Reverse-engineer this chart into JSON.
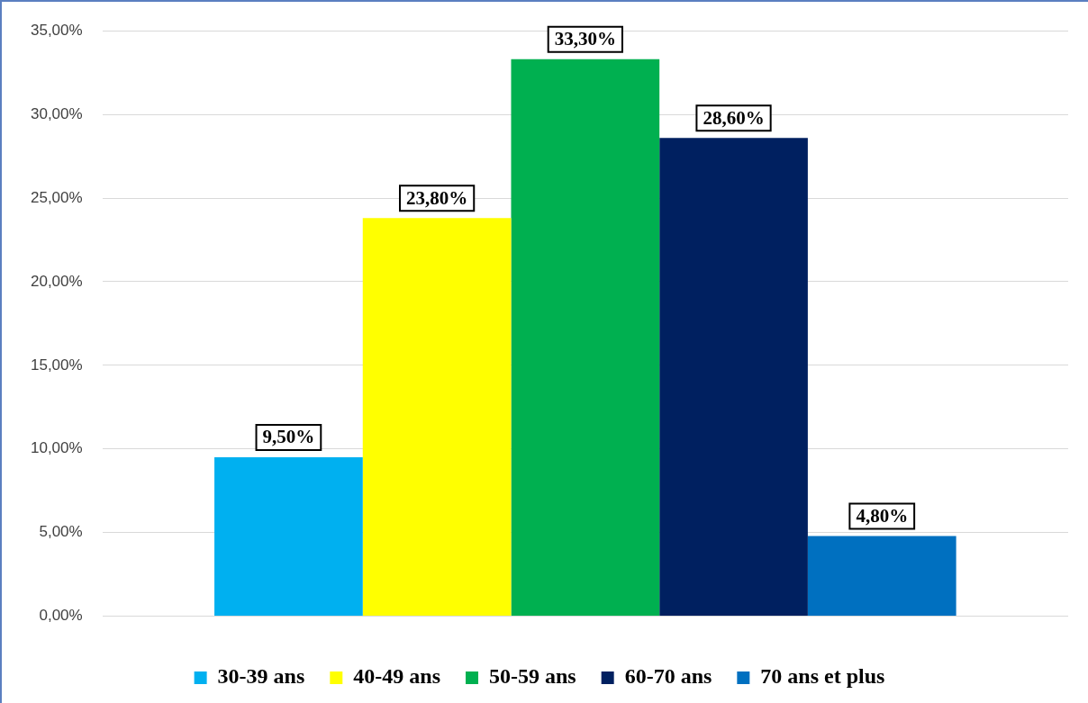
{
  "chart_data": {
    "type": "bar",
    "categories": [
      null
    ],
    "series": [
      {
        "name": "30-39 ans",
        "color": "#00b0f0",
        "values": [
          9.5
        ],
        "value_labels": [
          "9,50%"
        ]
      },
      {
        "name": "40-49 ans",
        "color": "#ffff00",
        "values": [
          23.8
        ],
        "value_labels": [
          "23,80%"
        ]
      },
      {
        "name": "50-59 ans",
        "color": "#00b050",
        "values": [
          33.3
        ],
        "value_labels": [
          "33,30%"
        ]
      },
      {
        "name": "60-70 ans",
        "color": "#002060",
        "values": [
          28.6
        ],
        "value_labels": [
          "28,60%"
        ]
      },
      {
        "name": "70 ans et plus",
        "color": "#0070c0",
        "values": [
          4.8
        ],
        "value_labels": [
          "4,80%"
        ]
      }
    ],
    "ylim": [
      0,
      35
    ],
    "yticks": [
      {
        "value": 0,
        "label": "0,00%"
      },
      {
        "value": 5,
        "label": "5,00%"
      },
      {
        "value": 10,
        "label": "10,00%"
      },
      {
        "value": 15,
        "label": "15,00%"
      },
      {
        "value": 20,
        "label": "20,00%"
      },
      {
        "value": 25,
        "label": "25,00%"
      },
      {
        "value": 30,
        "label": "30,00%"
      },
      {
        "value": 35,
        "label": "35,00%"
      }
    ],
    "grid": "y",
    "legend": "bottom"
  }
}
